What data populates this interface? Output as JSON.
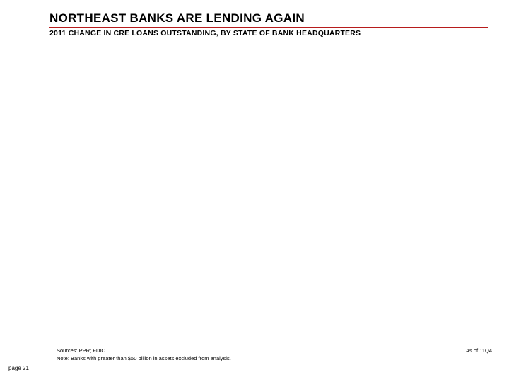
{
  "slide": {
    "title": "NORTHEAST BANKS ARE LENDING AGAIN",
    "subtitle": "2011 CHANGE IN CRE LOANS OUTSTANDING, BY STATE OF BANK HEADQUARTERS",
    "sources": "Sources: PPR; FDIC",
    "note": "Note:  Banks with greater than $50 billion in assets excluded from analysis.",
    "asof": "As of 11Q4",
    "page_number": "page 21"
  },
  "style": {
    "title_fontsize": 17,
    "subtitle_fontsize": 10.5,
    "footnote_fontsize": 7.5,
    "pagenum_fontsize": 8,
    "accent_color": "#b71c1c",
    "text_color": "#000000",
    "background_color": "#ffffff"
  }
}
